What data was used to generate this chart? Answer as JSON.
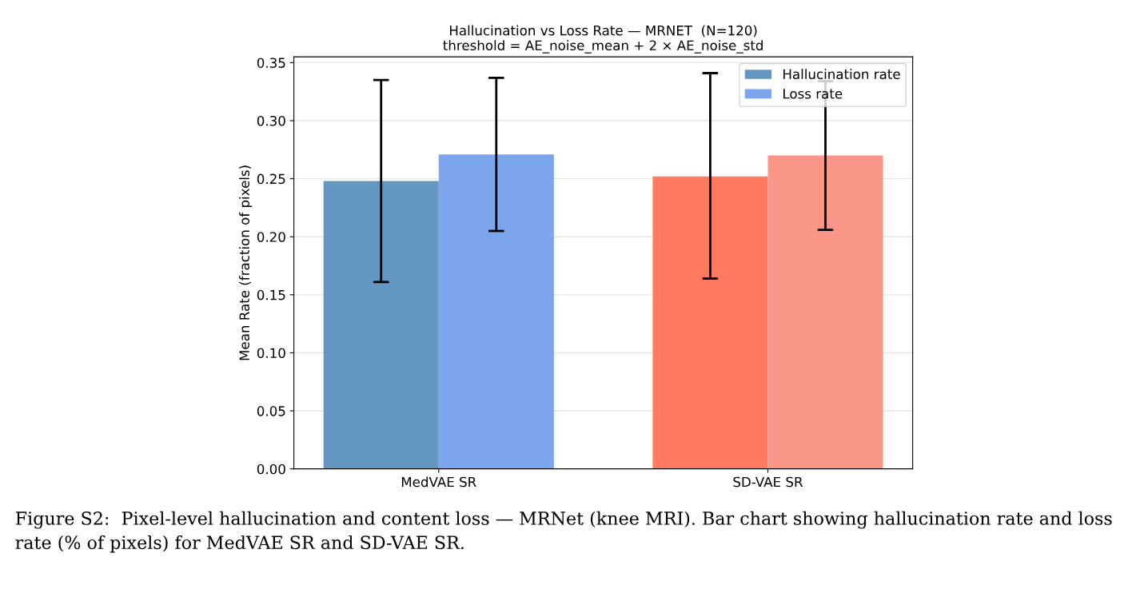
{
  "chart_data": {
    "type": "bar",
    "title": "Hallucination vs Loss Rate — MRNET  (N=120)",
    "subtitle": "threshold = AE_noise_mean + 2 × AE_noise_std",
    "ylabel": "Mean Rate (fraction of pixels)",
    "categories": [
      "MedVAE SR",
      "SD-VAE SR"
    ],
    "series": [
      {
        "name": "Hallucination rate",
        "color": "#6396c0",
        "colors": [
          "#6396c0",
          "#ff7a61"
        ],
        "values": [
          0.248,
          0.252
        ],
        "errors": [
          [
            0.161,
            0.335
          ],
          [
            0.164,
            0.341
          ]
        ]
      },
      {
        "name": "Loss rate",
        "color": "#7ca5ec",
        "colors": [
          "#7ca5ec",
          "#f99687"
        ],
        "values": [
          0.271,
          0.27
        ],
        "errors": [
          [
            0.205,
            0.337
          ],
          [
            0.206,
            0.334
          ]
        ]
      }
    ],
    "ylim": [
      0,
      0.355
    ],
    "yticks": [
      {
        "value": 0,
        "label": "0.00"
      },
      {
        "value": 0.05,
        "label": "0.05"
      },
      {
        "value": 0.1,
        "label": "0.10"
      },
      {
        "value": 0.15,
        "label": "0.15"
      },
      {
        "value": 0.2,
        "label": "0.20"
      },
      {
        "value": 0.25,
        "label": "0.25"
      },
      {
        "value": 0.3,
        "label": "0.30"
      },
      {
        "value": 0.35,
        "label": "0.35"
      }
    ],
    "grid": "y",
    "legend": "top right",
    "annotations": [
      "Figure S2:  Pixel-level hallucination and content loss — MRNet (knee MRI). Bar chart showing hallucination rate and loss rate (% of pixels) for MedVAE SR and SD-VAE SR."
    ]
  }
}
